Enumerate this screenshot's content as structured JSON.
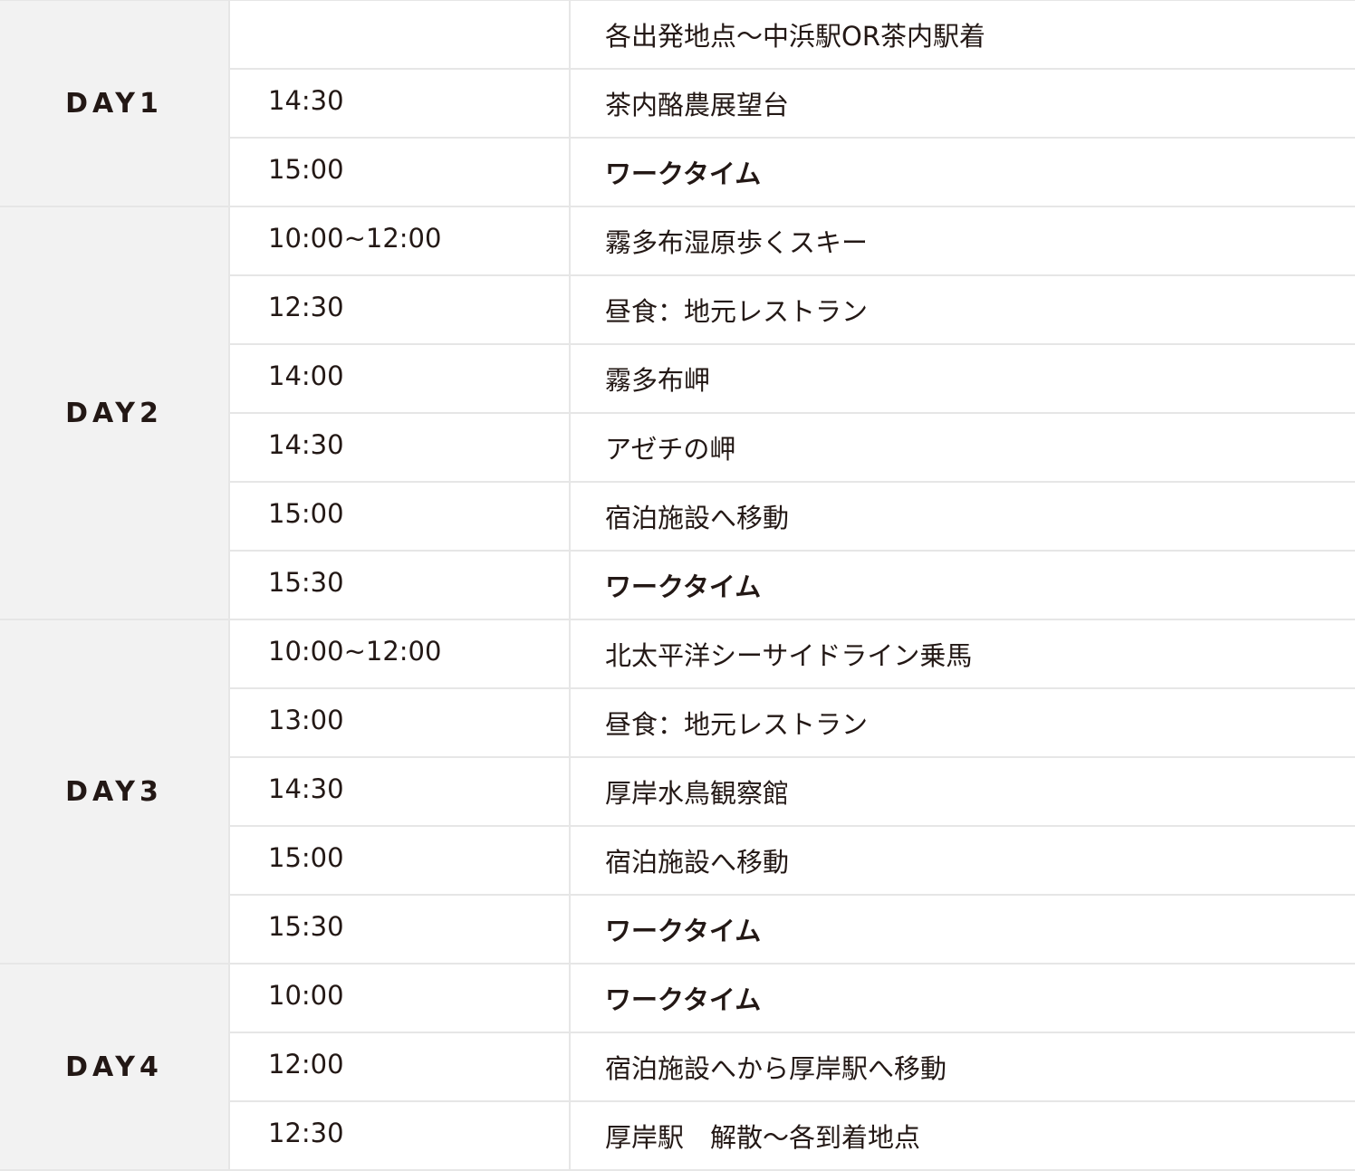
{
  "days": [
    {
      "label": "DAY1",
      "rows": [
        {
          "time": "",
          "activity": "各出発地点～中浜駅OR茶内駅着",
          "bold": false
        },
        {
          "time": "14:30",
          "activity": "茶内酪農展望台",
          "bold": false
        },
        {
          "time": "15:00",
          "activity": "ワークタイム",
          "bold": true
        }
      ]
    },
    {
      "label": "DAY2",
      "rows": [
        {
          "time": "10:00~12:00",
          "activity": "霧多布湿原歩くスキー",
          "bold": false
        },
        {
          "time": "12:30",
          "activity": "昼食：地元レストラン",
          "bold": false
        },
        {
          "time": "14:00",
          "activity": "霧多布岬",
          "bold": false
        },
        {
          "time": "14:30",
          "activity": "アゼチの岬",
          "bold": false
        },
        {
          "time": "15:00",
          "activity": "宿泊施設へ移動",
          "bold": false
        },
        {
          "time": "15:30",
          "activity": "ワークタイム",
          "bold": true
        }
      ]
    },
    {
      "label": "DAY3",
      "rows": [
        {
          "time": "10:00~12:00",
          "activity": "北太平洋シーサイドライン乗馬",
          "bold": false
        },
        {
          "time": "13:00",
          "activity": "昼食：地元レストラン",
          "bold": false
        },
        {
          "time": "14:30",
          "activity": "厚岸水鳥観察館",
          "bold": false
        },
        {
          "time": "15:00",
          "activity": "宿泊施設へ移動",
          "bold": false
        },
        {
          "time": "15:30",
          "activity": "ワークタイム",
          "bold": true
        }
      ]
    },
    {
      "label": "DAY4",
      "rows": [
        {
          "time": "10:00",
          "activity": "ワークタイム",
          "bold": true
        },
        {
          "time": "12:00",
          "activity": "宿泊施設へから厚岸駅へ移動",
          "bold": false
        },
        {
          "time": "12:30",
          "activity": "厚岸駅　解散～各到着地点",
          "bold": false
        }
      ]
    }
  ]
}
